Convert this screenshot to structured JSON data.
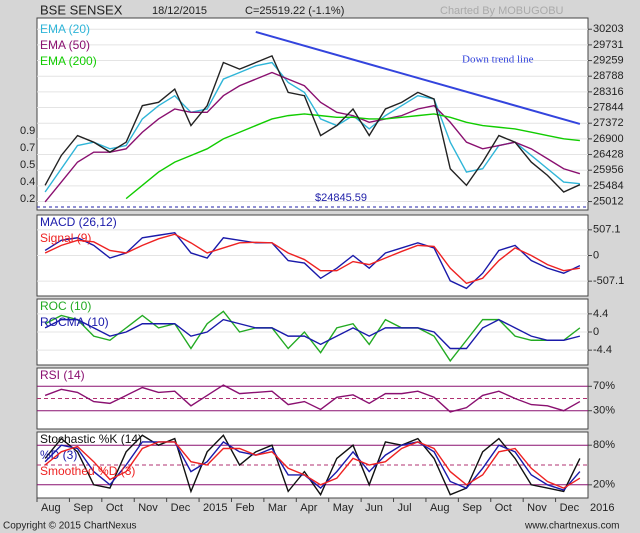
{
  "header": {
    "title": "BSE SENSEX",
    "date": "18/12/2015",
    "close": "C=25519.22 (-1.1%)",
    "credit": "Charted By MOBUGOBU"
  },
  "footer": {
    "copyright": "Copyright © 2015 ChartNexus",
    "site": "www.chartnexus.com"
  },
  "chart_data": [
    {
      "type": "line",
      "ylim": [
        24757,
        30541
      ],
      "yticks": [
        30203,
        29731,
        29259,
        28788,
        28316,
        27844,
        27372,
        26900,
        26428,
        25956,
        25484,
        25012
      ],
      "left_labels": [
        "0.9",
        "0.7",
        "0.5",
        "0.4",
        "0.2"
      ],
      "trendline": {
        "label": "Down trend line",
        "color": "#3344dd",
        "x": [
          13,
          33
        ],
        "values": [
          30120,
          27350
        ]
      },
      "support": {
        "value": 24845.59,
        "value_label": "$24845.59",
        "color": "#2222aa"
      },
      "series": [
        {
          "name": "EMA (20)",
          "color": "#2fb5d8",
          "values": [
            25300,
            26000,
            26700,
            26800,
            26600,
            26700,
            27500,
            27900,
            28200,
            27700,
            27800,
            28700,
            28900,
            29100,
            29200,
            28600,
            28300,
            27500,
            27300,
            27600,
            27200,
            27600,
            27900,
            28200,
            28100,
            26800,
            25900,
            26000,
            26700,
            26800,
            26400,
            26000,
            25600,
            25550
          ]
        },
        {
          "name": "EMA (50)",
          "color": "#8a1070",
          "values": [
            25000,
            25600,
            26200,
            26500,
            26500,
            26600,
            27100,
            27500,
            27800,
            27700,
            27700,
            28200,
            28500,
            28700,
            28900,
            28700,
            28500,
            28000,
            27700,
            27600,
            27400,
            27500,
            27600,
            27800,
            27900,
            27400,
            26800,
            26600,
            26700,
            26800,
            26600,
            26300,
            26000,
            25850
          ]
        },
        {
          "name": "EMA (200)",
          "color": "#11cc00",
          "values": [
            null,
            null,
            null,
            null,
            null,
            25100,
            25500,
            25900,
            26200,
            26400,
            26600,
            26900,
            27100,
            27300,
            27500,
            27600,
            27650,
            27600,
            27550,
            27550,
            27500,
            27500,
            27550,
            27600,
            27650,
            27550,
            27400,
            27300,
            27250,
            27200,
            27100,
            27000,
            26900,
            26850
          ]
        },
        {
          "color": "#222222",
          "values": [
            25500,
            26400,
            27000,
            26800,
            26500,
            26800,
            27900,
            28000,
            28400,
            27300,
            27900,
            29200,
            29000,
            29200,
            29400,
            28300,
            28200,
            27000,
            27300,
            27800,
            27000,
            27800,
            28000,
            28300,
            28100,
            26000,
            25500,
            26200,
            27000,
            26800,
            26200,
            25800,
            25300,
            25519.22
          ]
        }
      ]
    },
    {
      "type": "line",
      "ylim": [
        -800,
        800
      ],
      "yticks": [
        507.1,
        0,
        -507.1
      ],
      "series": [
        {
          "name": "MACD (26,12)",
          "color": "#1a1aaa",
          "values": [
            100,
            300,
            350,
            200,
            -50,
            50,
            350,
            400,
            450,
            50,
            -50,
            350,
            300,
            250,
            250,
            -100,
            -150,
            -450,
            -250,
            0,
            -250,
            50,
            150,
            250,
            150,
            -500,
            -650,
            -350,
            100,
            200,
            -100,
            -250,
            -350,
            -200
          ]
        },
        {
          "name": "Signal (9)",
          "color": "#ee2222",
          "values": [
            50,
            200,
            300,
            270,
            100,
            50,
            200,
            330,
            420,
            250,
            50,
            150,
            250,
            260,
            250,
            50,
            -80,
            -300,
            -300,
            -120,
            -180,
            -50,
            80,
            200,
            180,
            -250,
            -550,
            -450,
            -100,
            150,
            0,
            -180,
            -300,
            -250
          ]
        }
      ]
    },
    {
      "type": "line",
      "ylim": [
        -8,
        8
      ],
      "yticks": [
        4.4,
        0,
        -4.4
      ],
      "series": [
        {
          "name": "ROC (10)",
          "color": "#22aa22",
          "values": [
            2,
            4,
            3,
            -1,
            -2,
            1,
            4,
            1,
            2,
            -4,
            2,
            5,
            0,
            1,
            1,
            -4,
            0,
            -5,
            1,
            2,
            -3,
            3,
            1,
            1,
            -1,
            -7,
            -2,
            3,
            3,
            -1,
            -2,
            -2,
            -2,
            1
          ]
        },
        {
          "name": "ROCMA (10)",
          "color": "#1a1aaa",
          "values": [
            1,
            3,
            3,
            1,
            -1,
            0,
            2,
            2,
            2,
            -1,
            0,
            3,
            2,
            1,
            1,
            -1,
            -1,
            -3,
            -1,
            1,
            -1,
            1,
            1,
            1,
            0,
            -4,
            -4,
            1,
            3,
            1,
            -1,
            -2,
            -2,
            -1
          ]
        }
      ]
    },
    {
      "type": "line",
      "ylim": [
        0,
        100
      ],
      "yticks": [
        {
          "value": 70,
          "label": "70%"
        },
        {
          "value": 30,
          "label": "30%"
        }
      ],
      "levels_dashed": [
        50
      ],
      "series": [
        {
          "name": "RSI (14)",
          "color": "#8a1070",
          "values": [
            55,
            65,
            60,
            45,
            42,
            55,
            68,
            60,
            62,
            38,
            55,
            72,
            58,
            60,
            62,
            40,
            45,
            32,
            52,
            56,
            42,
            58,
            58,
            62,
            52,
            28,
            35,
            55,
            62,
            50,
            40,
            38,
            30,
            45
          ]
        }
      ]
    },
    {
      "type": "line",
      "ylim": [
        0,
        100
      ],
      "yticks": [
        {
          "value": 80,
          "label": "80%"
        },
        {
          "value": 20,
          "label": "20%"
        }
      ],
      "levels_dashed": [
        50
      ],
      "categories": [
        "Aug",
        null,
        "Sep",
        null,
        "Oct",
        null,
        "Nov",
        null,
        "Dec",
        null,
        "2015",
        null,
        "Feb",
        null,
        "Mar",
        null,
        "Apr",
        null,
        "May",
        null,
        "Jun",
        null,
        "Jul",
        null,
        "Aug",
        null,
        "Sep",
        null,
        "Oct",
        null,
        "Nov",
        null,
        "Dec",
        null
      ],
      "end_label": "2016",
      "series": [
        {
          "name": "Stochastic %K (14)",
          "color": "#111111",
          "values": [
            60,
            90,
            70,
            20,
            15,
            70,
            95,
            80,
            90,
            10,
            70,
            95,
            50,
            70,
            80,
            10,
            40,
            5,
            60,
            80,
            20,
            85,
            80,
            90,
            60,
            5,
            15,
            70,
            90,
            60,
            20,
            15,
            10,
            60
          ]
        },
        {
          "name": "%D (3)",
          "color": "#1a1aaa",
          "values": [
            55,
            80,
            75,
            40,
            20,
            50,
            85,
            85,
            85,
            40,
            55,
            85,
            70,
            65,
            75,
            35,
            35,
            15,
            40,
            70,
            40,
            65,
            80,
            85,
            70,
            25,
            15,
            45,
            80,
            70,
            35,
            20,
            12,
            40
          ]
        },
        {
          "name": "Smoothed %D (3)",
          "color": "#ee2222",
          "values": [
            50,
            70,
            78,
            55,
            28,
            40,
            75,
            85,
            85,
            55,
            50,
            75,
            75,
            65,
            70,
            45,
            35,
            20,
            30,
            60,
            50,
            55,
            75,
            85,
            75,
            40,
            20,
            35,
            70,
            75,
            45,
            25,
            15,
            30
          ]
        }
      ]
    }
  ]
}
